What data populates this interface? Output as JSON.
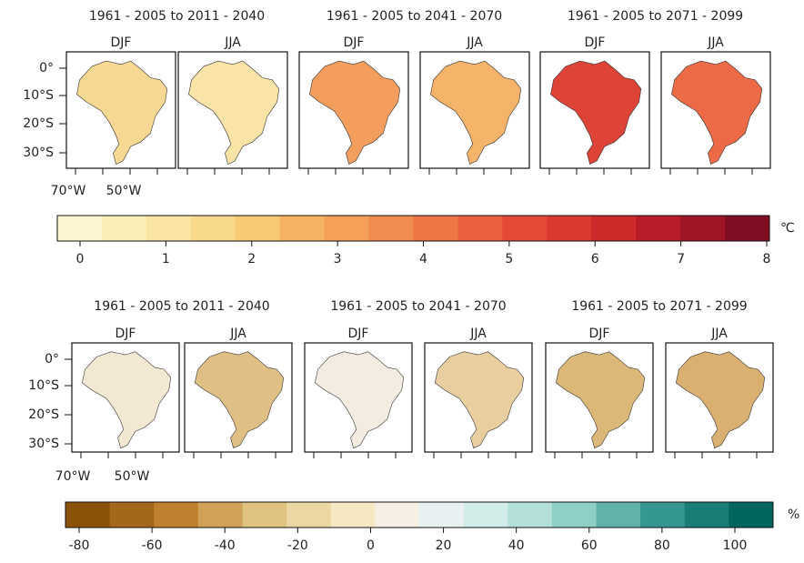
{
  "rows": [
    {
      "periods": [
        "1961 - 2005 to 2011 - 2040",
        "1961 - 2005 to 2041 - 2070",
        "1961 - 2005 to 2071 - 2099"
      ],
      "panels": [
        {
          "season": "DJF",
          "color": "#f8d994"
        },
        {
          "season": "JJA",
          "color": "#f9e3a6"
        },
        {
          "season": "DJF",
          "color": "#f39e5c"
        },
        {
          "season": "JJA",
          "color": "#f5b469"
        },
        {
          "season": "DJF",
          "color": "#de4338"
        },
        {
          "season": "JJA",
          "color": "#ec6a45"
        }
      ],
      "lat_labels": [
        "0°",
        "10°S",
        "20°S",
        "30°S"
      ],
      "lon_labels": [
        "70°W",
        "50°W"
      ],
      "colorbar": {
        "unit": "℃",
        "ticks": [
          0,
          1,
          2,
          3,
          4,
          5,
          6,
          7,
          8
        ],
        "colors": [
          "#fbf6cf",
          "#faefb7",
          "#f9e5a1",
          "#f8d98c",
          "#f7c974",
          "#f6b463",
          "#f4a058",
          "#f28b4f",
          "#ee7646",
          "#ea603e",
          "#e44b36",
          "#db3a30",
          "#cc2b2b",
          "#b71d29",
          "#a01427",
          "#7f0e22"
        ]
      }
    },
    {
      "periods": [
        "1961 - 2005 to 2011 - 2040",
        "1961 - 2005 to 2041 - 2070",
        "1961 - 2005 to 2071 - 2099"
      ],
      "panels": [
        {
          "season": "DJF",
          "color": "#f3e8d2"
        },
        {
          "season": "JJA",
          "color": "#e0bf84"
        },
        {
          "season": "DJF",
          "color": "#f4ece0"
        },
        {
          "season": "JJA",
          "color": "#e9cfa0"
        },
        {
          "season": "DJF",
          "color": "#dcb878"
        },
        {
          "season": "JJA",
          "color": "#d9b06f"
        }
      ],
      "lat_labels": [
        "0°",
        "10°S",
        "20°S",
        "30°S"
      ],
      "lon_labels": [
        "70°W",
        "50°W"
      ],
      "colorbar": {
        "unit": "%",
        "ticks": [
          -80,
          -60,
          -40,
          -20,
          0,
          20,
          40,
          60,
          80,
          100
        ],
        "colors": [
          "#8c5109",
          "#a5671b",
          "#bf812d",
          "#cfa257",
          "#dfc27d",
          "#ebd7a4",
          "#f6e8c3",
          "#f5efe4",
          "#e8f1f1",
          "#d2ece9",
          "#b4e0da",
          "#8fd0c6",
          "#5fb3a8",
          "#35978f",
          "#1a7d75",
          "#01665e"
        ]
      }
    }
  ]
}
